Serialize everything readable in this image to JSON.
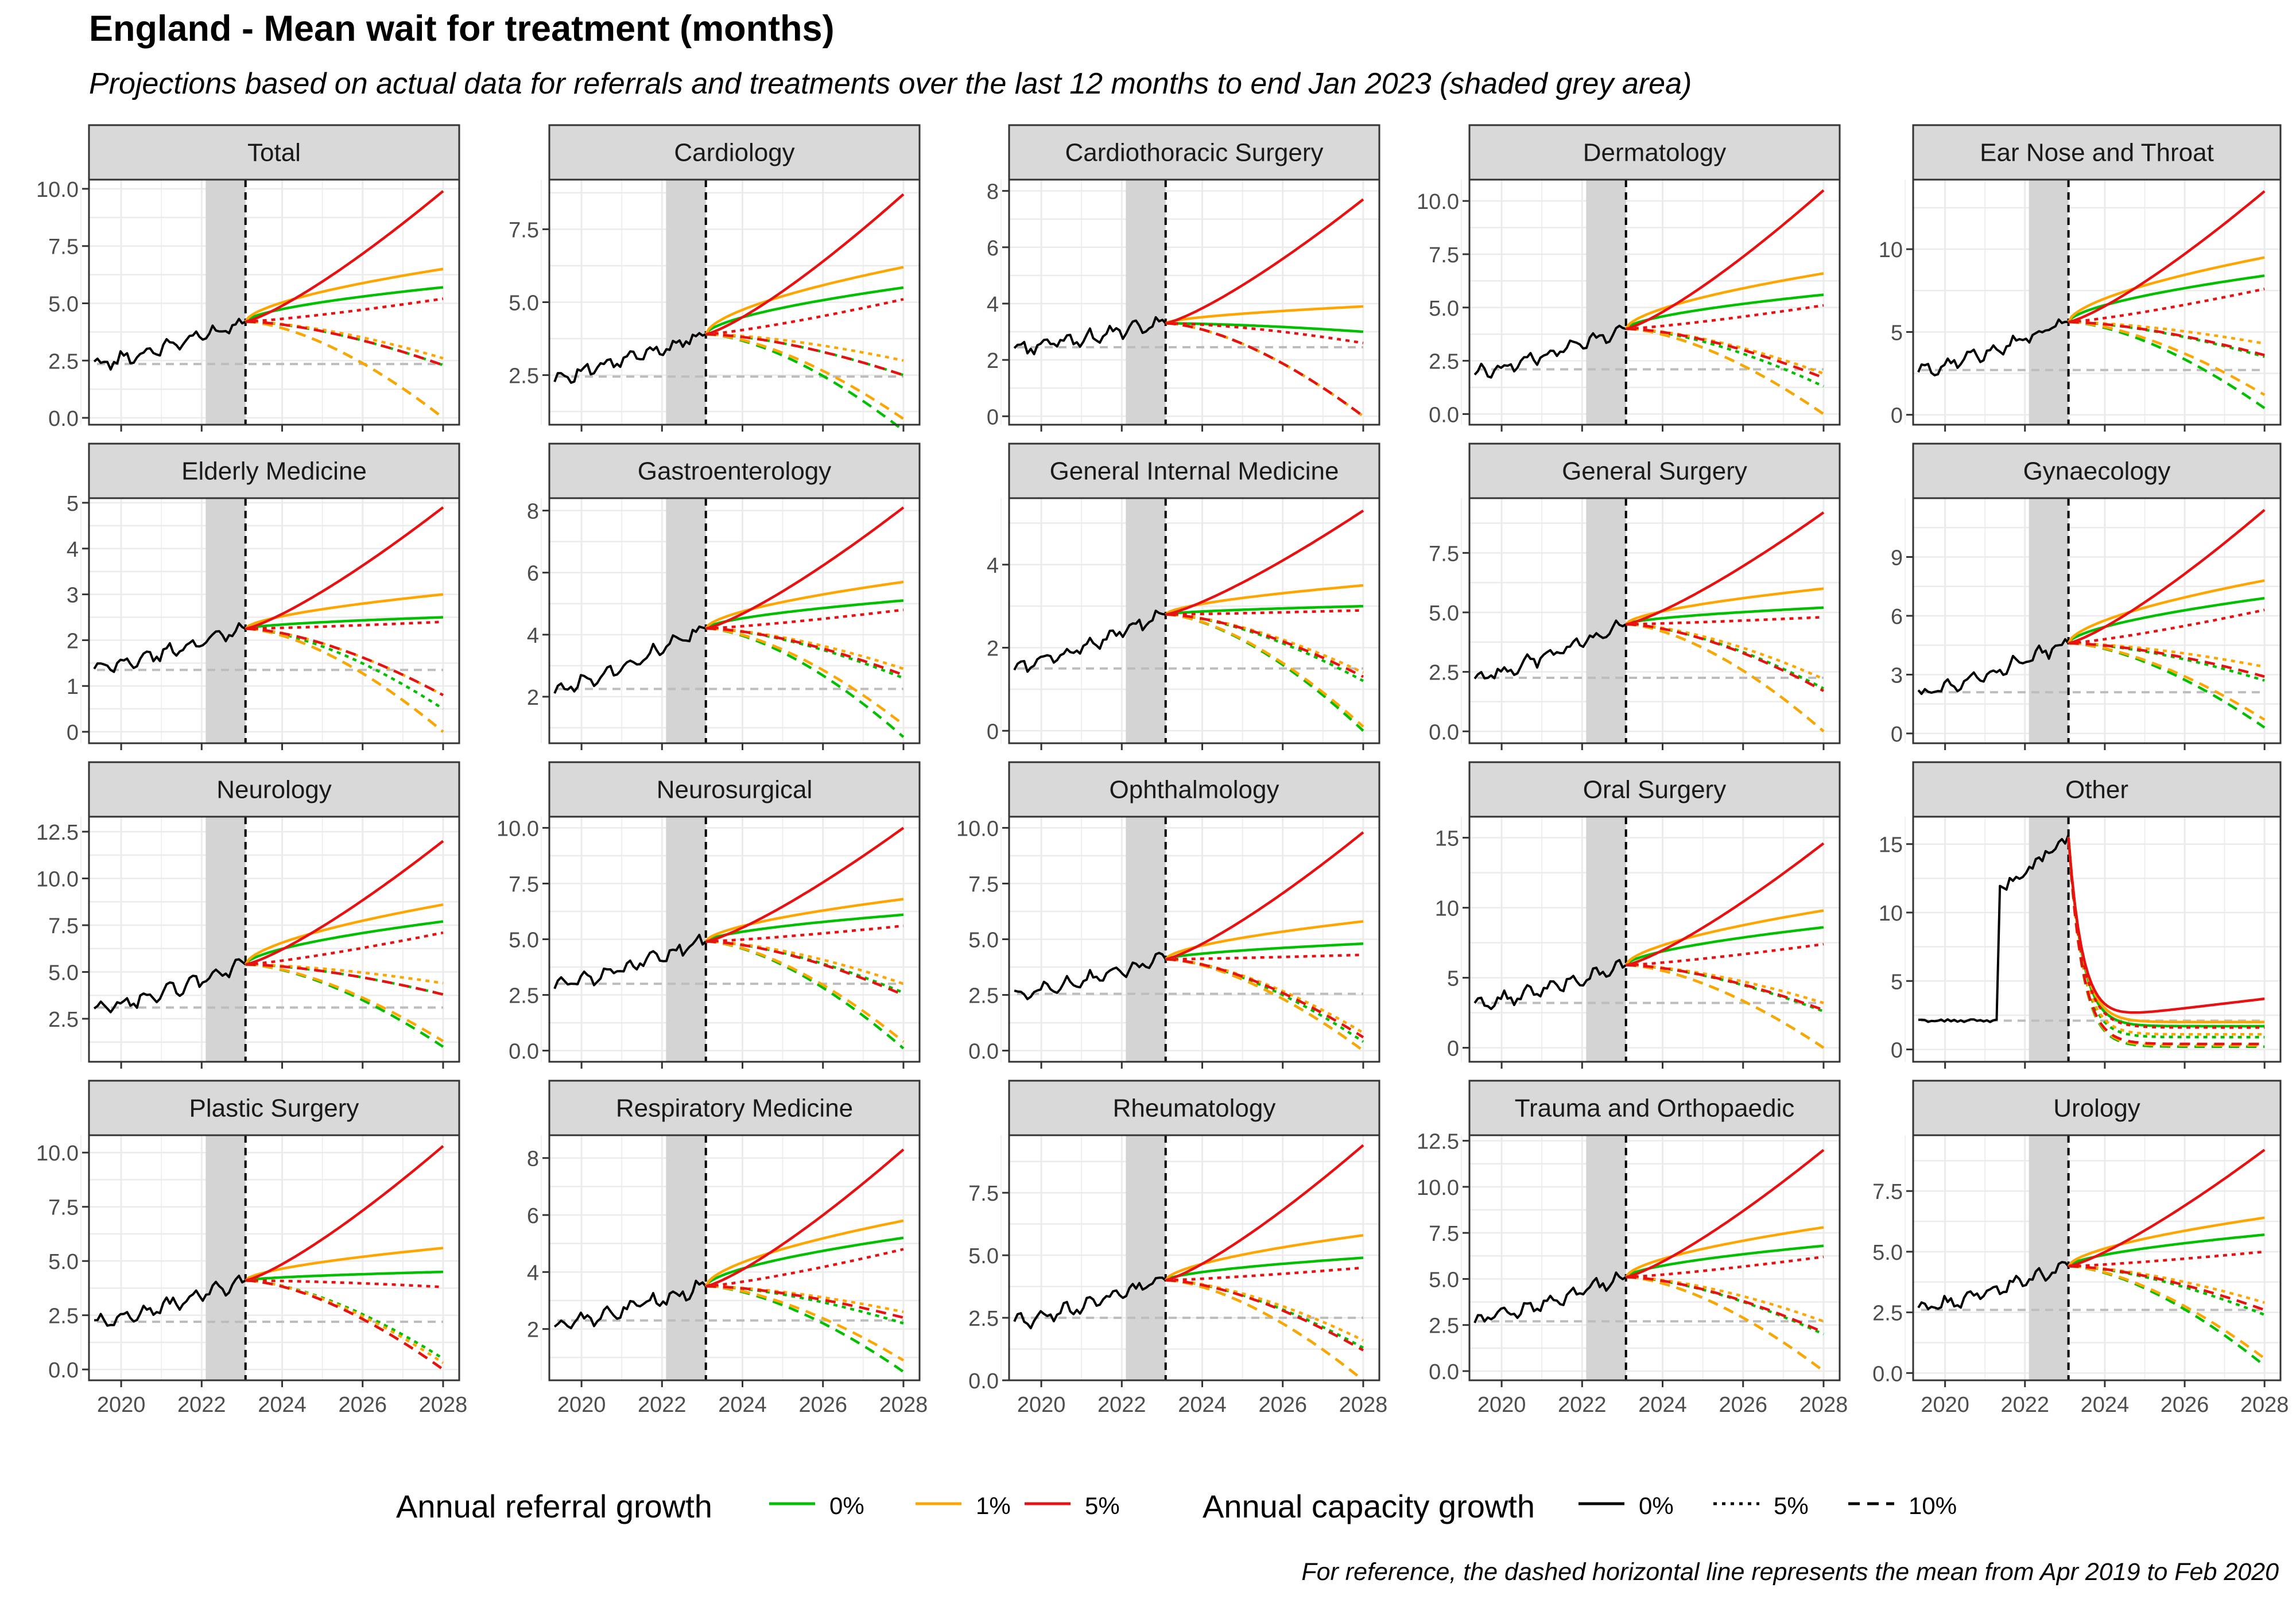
{
  "title": "England - Mean wait for treatment (months)",
  "subtitle": "Projections based on actual data for referrals and treatments over the last 12 months to end Jan 2023 (shaded grey area)",
  "caption": "For reference, the dashed horizontal line represents the mean from Apr 2019 to Feb 2020",
  "colors": {
    "referral_0": "#00C000",
    "referral_1": "#FFA500",
    "referral_5": "#E81010",
    "actual": "#000000",
    "reference_line": "#BDBDBD",
    "shade": "#D4D4D4",
    "strip": "#D9D9D9",
    "grid": "#EBEBEB"
  },
  "legend": {
    "referral": {
      "title": "Annual referral growth",
      "items": [
        {
          "label": "0%",
          "color": "#00C000"
        },
        {
          "label": "1%",
          "color": "#FFA500"
        },
        {
          "label": "5%",
          "color": "#E81010"
        }
      ]
    },
    "capacity": {
      "title": "Annual capacity growth",
      "items": [
        {
          "label": "0%",
          "dash": "solid"
        },
        {
          "label": "5%",
          "dash": "dotted"
        },
        {
          "label": "10%",
          "dash": "dashed"
        }
      ]
    }
  },
  "chart_data": {
    "type": "line",
    "facet_layout": "5 columns x 4 rows",
    "x_ticks": [
      "2020",
      "2022",
      "2024",
      "2026",
      "2028"
    ],
    "shaded_period": "Feb 2022 - Jan 2023",
    "projection_start": "Feb 2023",
    "scenario_order": [
      "referral 0% / capacity 0%",
      "referral 1% / capacity 0%",
      "referral 5% / capacity 0%",
      "referral 0% / capacity 5%",
      "referral 1% / capacity 5%",
      "referral 5% / capacity 5%",
      "referral 0% / capacity 10%",
      "referral 1% / capacity 10%",
      "referral 5% / capacity 10%"
    ],
    "scenario_endpoint_note": "value reached by each projection (at Jan 2028 or where it reaches 0)",
    "panels": [
      {
        "name": "Total",
        "y_ticks": [
          "0.0",
          "2.5",
          "5.0",
          "7.5",
          "10.0"
        ],
        "y_range": [
          -0.3,
          10.4
        ],
        "reference": 2.35,
        "actual_start": 2.3,
        "actual_end": 4.2,
        "endpoints": [
          5.7,
          6.5,
          9.9,
          2.3,
          2.6,
          5.2,
          0.0,
          0.0,
          2.3
        ]
      },
      {
        "name": "Cardiology",
        "y_ticks": [
          "2.5",
          "5.0",
          "7.5"
        ],
        "y_range": [
          0.8,
          9.2
        ],
        "reference": 2.45,
        "actual_start": 2.4,
        "actual_end": 3.9,
        "endpoints": [
          5.5,
          6.2,
          8.7,
          2.5,
          3.0,
          5.1,
          0.6,
          1.0,
          2.5
        ]
      },
      {
        "name": "Cardiothoracic Surgery",
        "y_ticks": [
          "0",
          "2",
          "4",
          "6",
          "8"
        ],
        "y_range": [
          -0.3,
          8.4
        ],
        "reference": 2.45,
        "actual_start": 2.4,
        "actual_end": 3.3,
        "endpoints": [
          3.0,
          3.9,
          7.7,
          0.0,
          0.0,
          2.6,
          0.0,
          0.0,
          0.0
        ]
      },
      {
        "name": "Dermatology",
        "y_ticks": [
          "0.0",
          "2.5",
          "5.0",
          "7.5",
          "10.0"
        ],
        "y_range": [
          -0.5,
          11.0
        ],
        "reference": 2.1,
        "actual_start": 1.9,
        "actual_end": 4.0,
        "endpoints": [
          5.6,
          6.6,
          10.5,
          1.3,
          1.9,
          5.1,
          0.0,
          0.0,
          1.7
        ]
      },
      {
        "name": "Ear Nose and Throat",
        "y_ticks": [
          "0",
          "5",
          "10"
        ],
        "y_range": [
          -0.6,
          14.2
        ],
        "reference": 2.7,
        "actual_start": 2.6,
        "actual_end": 5.6,
        "endpoints": [
          8.4,
          9.5,
          13.5,
          3.5,
          4.3,
          7.6,
          0.4,
          1.2,
          3.6
        ]
      },
      {
        "name": "Elderly Medicine",
        "y_ticks": [
          "0",
          "1",
          "2",
          "3",
          "4",
          "5"
        ],
        "y_range": [
          -0.25,
          5.1
        ],
        "reference": 1.35,
        "actual_start": 1.35,
        "actual_end": 2.25,
        "endpoints": [
          2.5,
          3.0,
          4.9,
          0.5,
          0.8,
          2.4,
          0.0,
          0.0,
          0.8
        ]
      },
      {
        "name": "Gastroenterology",
        "y_ticks": [
          "2",
          "4",
          "6",
          "8"
        ],
        "y_range": [
          0.5,
          8.4
        ],
        "reference": 2.25,
        "actual_start": 2.2,
        "actual_end": 4.2,
        "endpoints": [
          5.1,
          5.7,
          8.1,
          2.6,
          2.9,
          4.8,
          0.7,
          1.1,
          2.7
        ]
      },
      {
        "name": "General Internal Medicine",
        "y_ticks": [
          "0",
          "2",
          "4"
        ],
        "y_range": [
          -0.3,
          5.6
        ],
        "reference": 1.5,
        "actual_start": 1.5,
        "actual_end": 2.8,
        "endpoints": [
          3.0,
          3.5,
          5.3,
          1.2,
          1.4,
          2.9,
          0.0,
          0.1,
          1.3
        ]
      },
      {
        "name": "General Surgery",
        "y_ticks": [
          "0.0",
          "2.5",
          "5.0",
          "7.5"
        ],
        "y_range": [
          -0.5,
          9.8
        ],
        "reference": 2.25,
        "actual_start": 2.2,
        "actual_end": 4.5,
        "endpoints": [
          5.2,
          6.0,
          9.2,
          1.8,
          2.2,
          4.8,
          0.0,
          0.0,
          1.7
        ]
      },
      {
        "name": "Gynaecology",
        "y_ticks": [
          "0",
          "3",
          "6",
          "9"
        ],
        "y_range": [
          -0.5,
          12.0
        ],
        "reference": 2.1,
        "actual_start": 2.0,
        "actual_end": 4.6,
        "endpoints": [
          6.9,
          7.8,
          11.4,
          2.7,
          3.4,
          6.3,
          0.3,
          0.7,
          2.9
        ]
      },
      {
        "name": "Neurology",
        "y_ticks": [
          "2.5",
          "5.0",
          "7.5",
          "10.0",
          "12.5"
        ],
        "y_range": [
          0.2,
          13.3
        ],
        "reference": 3.1,
        "actual_start": 2.9,
        "actual_end": 5.4,
        "endpoints": [
          7.7,
          8.6,
          12.0,
          3.8,
          4.4,
          7.1,
          1.0,
          1.3,
          3.8
        ]
      },
      {
        "name": "Neurosurgical",
        "y_ticks": [
          "0.0",
          "2.5",
          "5.0",
          "7.5",
          "10.0"
        ],
        "y_range": [
          -0.5,
          10.5
        ],
        "reference": 3.0,
        "actual_start": 2.9,
        "actual_end": 4.9,
        "endpoints": [
          6.1,
          6.8,
          10.0,
          2.6,
          3.0,
          5.6,
          0.1,
          0.4,
          2.5
        ]
      },
      {
        "name": "Ophthalmology",
        "y_ticks": [
          "0.0",
          "2.5",
          "5.0",
          "7.5",
          "10.0"
        ],
        "y_range": [
          -0.5,
          10.5
        ],
        "reference": 2.55,
        "actual_start": 2.5,
        "actual_end": 4.1,
        "endpoints": [
          4.8,
          5.8,
          9.8,
          0.4,
          0.8,
          4.3,
          0.0,
          0.0,
          0.6
        ]
      },
      {
        "name": "Oral Surgery",
        "y_ticks": [
          "0",
          "5",
          "10",
          "15"
        ],
        "y_range": [
          -1.0,
          16.5
        ],
        "reference": 3.2,
        "actual_start": 3.0,
        "actual_end": 5.9,
        "endpoints": [
          8.6,
          9.8,
          14.6,
          2.6,
          3.2,
          7.4,
          0.0,
          0.0,
          2.7
        ]
      },
      {
        "name": "Other",
        "y_ticks": [
          "0",
          "5",
          "10",
          "15"
        ],
        "y_range": [
          -0.9,
          17.0
        ],
        "reference": 2.1,
        "actual_start": 2.0,
        "actual_end": 15.5,
        "endpoints": [
          1.7,
          2.0,
          3.7,
          0.9,
          1.1,
          1.6,
          0.2,
          0.3,
          0.4
        ]
      },
      {
        "name": "Plastic Surgery",
        "y_ticks": [
          "0.0",
          "2.5",
          "5.0",
          "7.5",
          "10.0"
        ],
        "y_range": [
          -0.5,
          10.8
        ],
        "reference": 2.2,
        "actual_start": 2.1,
        "actual_end": 4.1,
        "endpoints": [
          4.5,
          5.6,
          10.3,
          0.5,
          0.3,
          3.8,
          0.0,
          0.0,
          0.0
        ]
      },
      {
        "name": "Respiratory Medicine",
        "y_ticks": [
          "2",
          "4",
          "6",
          "8"
        ],
        "y_range": [
          0.2,
          8.8
        ],
        "reference": 2.3,
        "actual_start": 2.1,
        "actual_end": 3.5,
        "endpoints": [
          5.2,
          5.8,
          8.3,
          2.2,
          2.6,
          4.8,
          0.5,
          0.9,
          2.4
        ]
      },
      {
        "name": "Rheumatology",
        "y_ticks": [
          "0.0",
          "2.5",
          "5.0",
          "7.5"
        ],
        "y_range": [
          0.0,
          9.8
        ],
        "reference": 2.5,
        "actual_start": 2.3,
        "actual_end": 4.0,
        "endpoints": [
          4.9,
          5.8,
          9.4,
          1.3,
          1.6,
          4.5,
          0.0,
          0.0,
          1.2
        ]
      },
      {
        "name": "Trauma and Orthopaedic",
        "y_ticks": [
          "0.0",
          "2.5",
          "5.0",
          "7.5",
          "10.0",
          "12.5"
        ],
        "y_range": [
          -0.5,
          12.8
        ],
        "reference": 2.7,
        "actual_start": 2.7,
        "actual_end": 5.1,
        "endpoints": [
          6.8,
          7.8,
          12.0,
          2.0,
          2.7,
          6.2,
          0.0,
          0.0,
          2.1
        ]
      },
      {
        "name": "Urology",
        "y_ticks": [
          "0.0",
          "2.5",
          "5.0",
          "7.5"
        ],
        "y_range": [
          -0.3,
          9.8
        ],
        "reference": 2.6,
        "actual_start": 2.6,
        "actual_end": 4.4,
        "endpoints": [
          5.7,
          6.4,
          9.2,
          2.4,
          2.9,
          5.0,
          0.3,
          0.6,
          2.6
        ]
      }
    ]
  }
}
